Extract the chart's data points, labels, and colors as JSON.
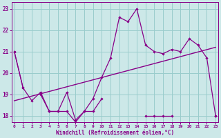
{
  "xlabel": "Windchill (Refroidissement éolien,°C)",
  "background_color": "#cce8e8",
  "line_color": "#880088",
  "grid_color": "#99cccc",
  "hours": [
    0,
    1,
    2,
    3,
    4,
    5,
    6,
    7,
    8,
    9,
    10,
    11,
    12,
    13,
    14,
    15,
    16,
    17,
    18,
    19,
    20,
    21,
    22,
    23
  ],
  "temp_main": [
    21.0,
    19.3,
    18.7,
    19.1,
    18.2,
    18.2,
    19.1,
    17.8,
    18.2,
    18.8,
    19.8,
    20.7,
    22.6,
    22.4,
    23.0,
    21.3,
    21.0,
    20.9,
    21.1,
    21.0,
    21.6,
    21.3,
    20.7,
    18.0
  ],
  "temp_flat": [
    21.0,
    19.3,
    null,
    19.0,
    18.2,
    18.2,
    18.2,
    17.7,
    18.2,
    18.2,
    18.8,
    null,
    null,
    null,
    null,
    18.0,
    18.0,
    18.0,
    18.0,
    null,
    null,
    null,
    null,
    18.0
  ],
  "trend_x": [
    0,
    23
  ],
  "trend_y": [
    18.7,
    21.2
  ],
  "ylim": [
    17.7,
    23.3
  ],
  "xlim": [
    -0.3,
    23.3
  ],
  "yticks": [
    18,
    19,
    20,
    21,
    22,
    23
  ],
  "xticks": [
    0,
    1,
    2,
    3,
    4,
    5,
    6,
    7,
    8,
    9,
    10,
    11,
    12,
    13,
    14,
    15,
    16,
    17,
    18,
    19,
    20,
    21,
    22,
    23
  ]
}
